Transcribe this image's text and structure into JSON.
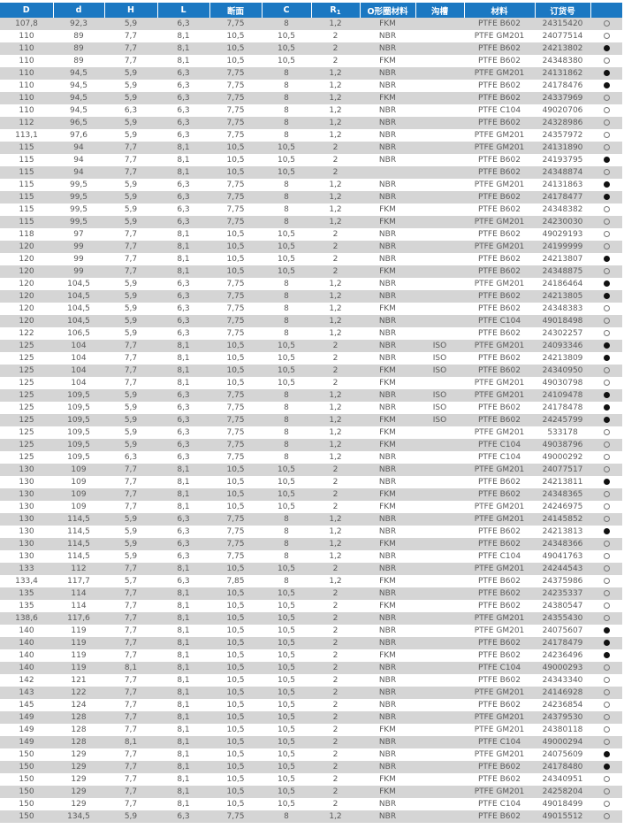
{
  "header": {
    "D": "D",
    "d": "d",
    "H": "H",
    "L": "L",
    "section": "断面",
    "C": "C",
    "R_main": "R",
    "R_sub": "1",
    "oring_material": "O形圈材料",
    "groove": "沟槽",
    "material": "材料",
    "order_no": "订货号"
  },
  "marker_legend": {
    "filled": "●",
    "hollow": "○"
  },
  "colors": {
    "header_bg": "#1b78c2",
    "stripe": "#d5d5d5",
    "text": "#5a5a5a"
  },
  "rows": [
    [
      "107,8",
      "92,3",
      "5,9",
      "6,3",
      "7,75",
      "8",
      "1,2",
      "FKM",
      "",
      "PTFE B602",
      "24315420",
      "hollow"
    ],
    [
      "110",
      "89",
      "7,7",
      "8,1",
      "10,5",
      "10,5",
      "2",
      "NBR",
      "",
      "PTFE GM201",
      "24077514",
      "hollow"
    ],
    [
      "110",
      "89",
      "7,7",
      "8,1",
      "10,5",
      "10,5",
      "2",
      "NBR",
      "",
      "PTFE B602",
      "24213802",
      "filled"
    ],
    [
      "110",
      "89",
      "7,7",
      "8,1",
      "10,5",
      "10,5",
      "2",
      "FKM",
      "",
      "PTFE B602",
      "24348380",
      "hollow"
    ],
    [
      "110",
      "94,5",
      "5,9",
      "6,3",
      "7,75",
      "8",
      "1,2",
      "NBR",
      "",
      "PTFE GM201",
      "24131862",
      "filled"
    ],
    [
      "110",
      "94,5",
      "5,9",
      "6,3",
      "7,75",
      "8",
      "1,2",
      "NBR",
      "",
      "PTFE B602",
      "24178476",
      "filled"
    ],
    [
      "110",
      "94,5",
      "5,9",
      "6,3",
      "7,75",
      "8",
      "1,2",
      "FKM",
      "",
      "PTFE B602",
      "24337969",
      "hollow"
    ],
    [
      "110",
      "94,5",
      "6,3",
      "6,3",
      "7,75",
      "8",
      "1,2",
      "NBR",
      "",
      "PTFE C104",
      "49020706",
      "hollow"
    ],
    [
      "112",
      "96,5",
      "5,9",
      "6,3",
      "7,75",
      "8",
      "1,2",
      "NBR",
      "",
      "PTFE B602",
      "24328986",
      "hollow"
    ],
    [
      "113,1",
      "97,6",
      "5,9",
      "6,3",
      "7,75",
      "8",
      "1,2",
      "NBR",
      "",
      "PTFE GM201",
      "24357972",
      "hollow"
    ],
    [
      "115",
      "94",
      "7,7",
      "8,1",
      "10,5",
      "10,5",
      "2",
      "NBR",
      "",
      "PTFE GM201",
      "24131890",
      "hollow"
    ],
    [
      "115",
      "94",
      "7,7",
      "8,1",
      "10,5",
      "10,5",
      "2",
      "NBR",
      "",
      "PTFE B602",
      "24193795",
      "filled"
    ],
    [
      "115",
      "94",
      "7,7",
      "8,1",
      "10,5",
      "10,5",
      "2",
      "",
      "",
      "PTFE B602",
      "24348874",
      "hollow"
    ],
    [
      "115",
      "99,5",
      "5,9",
      "6,3",
      "7,75",
      "8",
      "1,2",
      "NBR",
      "",
      "PTFE GM201",
      "24131863",
      "filled"
    ],
    [
      "115",
      "99,5",
      "5,9",
      "6,3",
      "7,75",
      "8",
      "1,2",
      "NBR",
      "",
      "PTFE B602",
      "24178477",
      "filled"
    ],
    [
      "115",
      "99,5",
      "5,9",
      "6,3",
      "7,75",
      "8",
      "1,2",
      "FKM",
      "",
      "PTFE B602",
      "24348382",
      "hollow"
    ],
    [
      "115",
      "99,5",
      "5,9",
      "6,3",
      "7,75",
      "8",
      "1,2",
      "FKM",
      "",
      "PTFE GM201",
      "24230030",
      "hollow"
    ],
    [
      "118",
      "97",
      "7,7",
      "8,1",
      "10,5",
      "10,5",
      "2",
      "NBR",
      "",
      "PTFE B602",
      "49029193",
      "hollow"
    ],
    [
      "120",
      "99",
      "7,7",
      "8,1",
      "10,5",
      "10,5",
      "2",
      "NBR",
      "",
      "PTFE GM201",
      "24199999",
      "hollow"
    ],
    [
      "120",
      "99",
      "7,7",
      "8,1",
      "10,5",
      "10,5",
      "2",
      "NBR",
      "",
      "PTFE B602",
      "24213807",
      "filled"
    ],
    [
      "120",
      "99",
      "7,7",
      "8,1",
      "10,5",
      "10,5",
      "2",
      "FKM",
      "",
      "PTFE B602",
      "24348875",
      "hollow"
    ],
    [
      "120",
      "104,5",
      "5,9",
      "6,3",
      "7,75",
      "8",
      "1,2",
      "NBR",
      "",
      "PTFE GM201",
      "24186464",
      "filled"
    ],
    [
      "120",
      "104,5",
      "5,9",
      "6,3",
      "7,75",
      "8",
      "1,2",
      "NBR",
      "",
      "PTFE B602",
      "24213805",
      "filled"
    ],
    [
      "120",
      "104,5",
      "5,9",
      "6,3",
      "7,75",
      "8",
      "1,2",
      "FKM",
      "",
      "PTFE B602",
      "24348383",
      "hollow"
    ],
    [
      "120",
      "104,5",
      "5,9",
      "6,3",
      "7,75",
      "8",
      "1,2",
      "NBR",
      "",
      "PTFE C104",
      "49018498",
      "hollow"
    ],
    [
      "122",
      "106,5",
      "5,9",
      "6,3",
      "7,75",
      "8",
      "1,2",
      "NBR",
      "",
      "PTFE B602",
      "24302257",
      "hollow"
    ],
    [
      "125",
      "104",
      "7,7",
      "8,1",
      "10,5",
      "10,5",
      "2",
      "NBR",
      "ISO",
      "PTFE GM201",
      "24093346",
      "filled"
    ],
    [
      "125",
      "104",
      "7,7",
      "8,1",
      "10,5",
      "10,5",
      "2",
      "NBR",
      "ISO",
      "PTFE B602",
      "24213809",
      "filled"
    ],
    [
      "125",
      "104",
      "7,7",
      "8,1",
      "10,5",
      "10,5",
      "2",
      "FKM",
      "ISO",
      "PTFE B602",
      "24340950",
      "hollow"
    ],
    [
      "125",
      "104",
      "7,7",
      "8,1",
      "10,5",
      "10,5",
      "2",
      "FKM",
      "",
      "PTFE GM201",
      "49030798",
      "hollow"
    ],
    [
      "125",
      "109,5",
      "5,9",
      "6,3",
      "7,75",
      "8",
      "1,2",
      "NBR",
      "ISO",
      "PTFE GM201",
      "24109478",
      "filled"
    ],
    [
      "125",
      "109,5",
      "5,9",
      "6,3",
      "7,75",
      "8",
      "1,2",
      "NBR",
      "ISO",
      "PTFE B602",
      "24178478",
      "filled"
    ],
    [
      "125",
      "109,5",
      "5,9",
      "6,3",
      "7,75",
      "8",
      "1,2",
      "FKM",
      "ISO",
      "PTFE B602",
      "24245799",
      "filled"
    ],
    [
      "125",
      "109,5",
      "5,9",
      "6,3",
      "7,75",
      "8",
      "1,2",
      "FKM",
      "",
      "PTFE GM201",
      "533178",
      "hollow"
    ],
    [
      "125",
      "109,5",
      "5,9",
      "6,3",
      "7,75",
      "8",
      "1,2",
      "FKM",
      "",
      "PTFE C104",
      "49038796",
      "hollow"
    ],
    [
      "125",
      "109,5",
      "6,3",
      "6,3",
      "7,75",
      "8",
      "1,2",
      "NBR",
      "",
      "PTFE C104",
      "49000292",
      "hollow"
    ],
    [
      "130",
      "109",
      "7,7",
      "8,1",
      "10,5",
      "10,5",
      "2",
      "NBR",
      "",
      "PTFE GM201",
      "24077517",
      "hollow"
    ],
    [
      "130",
      "109",
      "7,7",
      "8,1",
      "10,5",
      "10,5",
      "2",
      "NBR",
      "",
      "PTFE B602",
      "24213811",
      "filled"
    ],
    [
      "130",
      "109",
      "7,7",
      "8,1",
      "10,5",
      "10,5",
      "2",
      "FKM",
      "",
      "PTFE B602",
      "24348365",
      "hollow"
    ],
    [
      "130",
      "109",
      "7,7",
      "8,1",
      "10,5",
      "10,5",
      "2",
      "FKM",
      "",
      "PTFE GM201",
      "24246975",
      "hollow"
    ],
    [
      "130",
      "114,5",
      "5,9",
      "6,3",
      "7,75",
      "8",
      "1,2",
      "NBR",
      "",
      "PTFE GM201",
      "24145852",
      "hollow"
    ],
    [
      "130",
      "114,5",
      "5,9",
      "6,3",
      "7,75",
      "8",
      "1,2",
      "NBR",
      "",
      "PTFE B602",
      "24213813",
      "filled"
    ],
    [
      "130",
      "114,5",
      "5,9",
      "6,3",
      "7,75",
      "8",
      "1,2",
      "FKM",
      "",
      "PTFE B602",
      "24348366",
      "hollow"
    ],
    [
      "130",
      "114,5",
      "5,9",
      "6,3",
      "7,75",
      "8",
      "1,2",
      "NBR",
      "",
      "PTFE C104",
      "49041763",
      "hollow"
    ],
    [
      "133",
      "112",
      "7,7",
      "8,1",
      "10,5",
      "10,5",
      "2",
      "NBR",
      "",
      "PTFE GM201",
      "24244543",
      "hollow"
    ],
    [
      "133,4",
      "117,7",
      "5,7",
      "6,3",
      "7,85",
      "8",
      "1,2",
      "FKM",
      "",
      "PTFE B602",
      "24375986",
      "hollow"
    ],
    [
      "135",
      "114",
      "7,7",
      "8,1",
      "10,5",
      "10,5",
      "2",
      "NBR",
      "",
      "PTFE B602",
      "24235337",
      "hollow"
    ],
    [
      "135",
      "114",
      "7,7",
      "8,1",
      "10,5",
      "10,5",
      "2",
      "FKM",
      "",
      "PTFE B602",
      "24380547",
      "hollow"
    ],
    [
      "138,6",
      "117,6",
      "7,7",
      "8,1",
      "10,5",
      "10,5",
      "2",
      "NBR",
      "",
      "PTFE GM201",
      "24355430",
      "hollow"
    ],
    [
      "140",
      "119",
      "7,7",
      "8,1",
      "10,5",
      "10,5",
      "2",
      "NBR",
      "",
      "PTFE GM201",
      "24075607",
      "filled"
    ],
    [
      "140",
      "119",
      "7,7",
      "8,1",
      "10,5",
      "10,5",
      "2",
      "NBR",
      "",
      "PTFE B602",
      "24178479",
      "filled"
    ],
    [
      "140",
      "119",
      "7,7",
      "8,1",
      "10,5",
      "10,5",
      "2",
      "FKM",
      "",
      "PTFE B602",
      "24236496",
      "filled"
    ],
    [
      "140",
      "119",
      "8,1",
      "8,1",
      "10,5",
      "10,5",
      "2",
      "NBR",
      "",
      "PTFE C104",
      "49000293",
      "hollow"
    ],
    [
      "142",
      "121",
      "7,7",
      "8,1",
      "10,5",
      "10,5",
      "2",
      "NBR",
      "",
      "PTFE B602",
      "24343340",
      "hollow"
    ],
    [
      "143",
      "122",
      "7,7",
      "8,1",
      "10,5",
      "10,5",
      "2",
      "NBR",
      "",
      "PTFE GM201",
      "24146928",
      "hollow"
    ],
    [
      "145",
      "124",
      "7,7",
      "8,1",
      "10,5",
      "10,5",
      "2",
      "NBR",
      "",
      "PTFE B602",
      "24236854",
      "hollow"
    ],
    [
      "149",
      "128",
      "7,7",
      "8,1",
      "10,5",
      "10,5",
      "2",
      "NBR",
      "",
      "PTFE GM201",
      "24379530",
      "hollow"
    ],
    [
      "149",
      "128",
      "7,7",
      "8,1",
      "10,5",
      "10,5",
      "2",
      "FKM",
      "",
      "PTFE GM201",
      "24380118",
      "hollow"
    ],
    [
      "149",
      "128",
      "8,1",
      "8,1",
      "10,5",
      "10,5",
      "2",
      "NBR",
      "",
      "PTFE C104",
      "49000294",
      "hollow"
    ],
    [
      "150",
      "129",
      "7,7",
      "8,1",
      "10,5",
      "10,5",
      "2",
      "NBR",
      "",
      "PTFE GM201",
      "24075609",
      "filled"
    ],
    [
      "150",
      "129",
      "7,7",
      "8,1",
      "10,5",
      "10,5",
      "2",
      "NBR",
      "",
      "PTFE B602",
      "24178480",
      "filled"
    ],
    [
      "150",
      "129",
      "7,7",
      "8,1",
      "10,5",
      "10,5",
      "2",
      "FKM",
      "",
      "PTFE B602",
      "24340951",
      "hollow"
    ],
    [
      "150",
      "129",
      "7,7",
      "8,1",
      "10,5",
      "10,5",
      "2",
      "FKM",
      "",
      "PTFE GM201",
      "24258204",
      "hollow"
    ],
    [
      "150",
      "129",
      "7,7",
      "8,1",
      "10,5",
      "10,5",
      "2",
      "NBR",
      "",
      "PTFE C104",
      "49018499",
      "hollow"
    ],
    [
      "150",
      "134,5",
      "5,9",
      "6,3",
      "7,75",
      "8",
      "1,2",
      "NBR",
      "",
      "PTFE B602",
      "49015512",
      "hollow"
    ]
  ]
}
